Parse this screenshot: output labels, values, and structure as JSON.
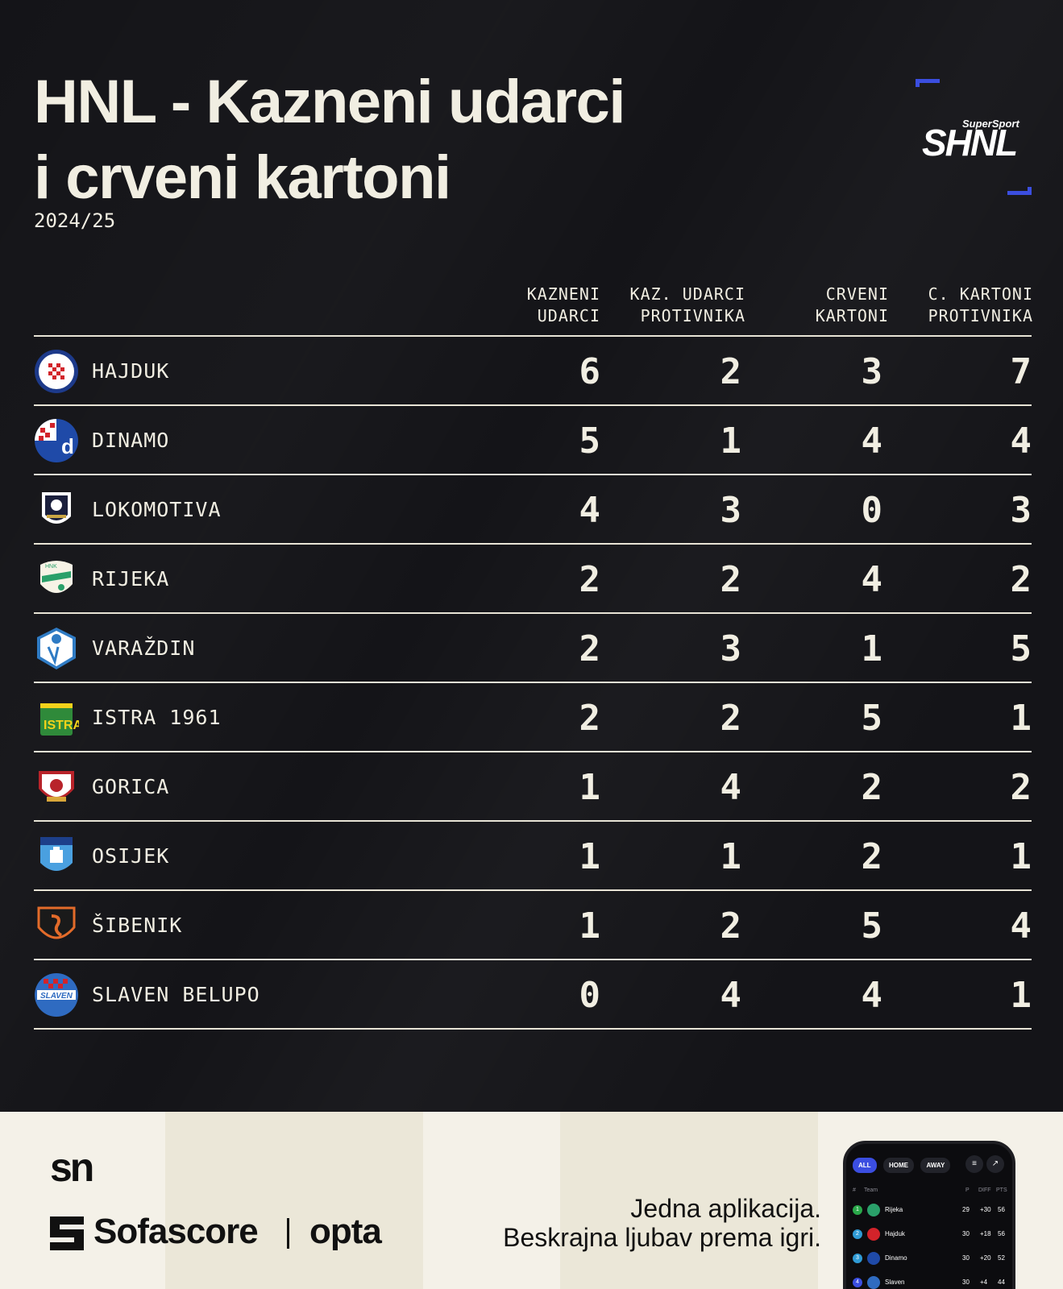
{
  "header": {
    "title_line1": "HNL - Kazneni udarci",
    "title_line2": "i crveni kartoni",
    "season": "2024/25",
    "logo_small": "SuperSport",
    "logo_big": "SHNL"
  },
  "columns": [
    {
      "line1": "KAZNENI",
      "line2": "UDARCI"
    },
    {
      "line1": "KAZ. UDARCI",
      "line2": "PROTIVNIKA"
    },
    {
      "line1": "CRVENI",
      "line2": "KARTONI"
    },
    {
      "line1": "C. KARTONI",
      "line2": "PROTIVNIKA"
    }
  ],
  "teams": [
    {
      "name": "HAJDUK",
      "crest": "hajduk-crest",
      "values": [
        "6",
        "2",
        "3",
        "7"
      ]
    },
    {
      "name": "DINAMO",
      "crest": "dinamo-crest",
      "values": [
        "5",
        "1",
        "4",
        "4"
      ]
    },
    {
      "name": "LOKOMOTIVA",
      "crest": "lokomotiva-crest",
      "values": [
        "4",
        "3",
        "0",
        "3"
      ]
    },
    {
      "name": "RIJEKA",
      "crest": "rijeka-crest",
      "values": [
        "2",
        "2",
        "4",
        "2"
      ]
    },
    {
      "name": "VARAŽDIN",
      "crest": "varazdin-crest",
      "values": [
        "2",
        "3",
        "1",
        "5"
      ]
    },
    {
      "name": "ISTRA 1961",
      "crest": "istra-crest",
      "values": [
        "2",
        "2",
        "5",
        "1"
      ]
    },
    {
      "name": "GORICA",
      "crest": "gorica-crest",
      "values": [
        "1",
        "4",
        "2",
        "2"
      ]
    },
    {
      "name": "OSIJEK",
      "crest": "osijek-crest",
      "values": [
        "1",
        "1",
        "2",
        "1"
      ]
    },
    {
      "name": "ŠIBENIK",
      "crest": "sibenik-crest",
      "values": [
        "1",
        "2",
        "5",
        "4"
      ]
    },
    {
      "name": "SLAVEN BELUPO",
      "crest": "slaven-crest",
      "values": [
        "0",
        "4",
        "4",
        "1"
      ]
    }
  ],
  "footer": {
    "sn_logo": "sn",
    "sofascore": "Sofascore",
    "opta": "opta",
    "tagline_line1": "Jedna aplikacija.",
    "tagline_line2": "Beskrajna ljubav prema igri.",
    "phone": {
      "tabs": [
        "ALL",
        "HOME",
        "AWAY"
      ],
      "head_hash": "#",
      "head_team": "Team",
      "head_p": "P",
      "head_diff": "DIFF",
      "head_pts": "PTS",
      "rows": [
        {
          "rank": "1",
          "team": "Rijeka",
          "p": "29",
          "diff": "+30",
          "pts": "56"
        },
        {
          "rank": "2",
          "team": "Hajduk",
          "p": "30",
          "diff": "+18",
          "pts": "56"
        },
        {
          "rank": "3",
          "team": "Dinamo",
          "p": "30",
          "diff": "+20",
          "pts": "52"
        },
        {
          "rank": "4",
          "team": "Slaven",
          "p": "30",
          "diff": "+4",
          "pts": "44"
        }
      ]
    }
  },
  "colors": {
    "background": "#141418",
    "text": "#f1eee2",
    "accent": "#3b4ee0",
    "footer_bg": "#f4f1e8"
  }
}
